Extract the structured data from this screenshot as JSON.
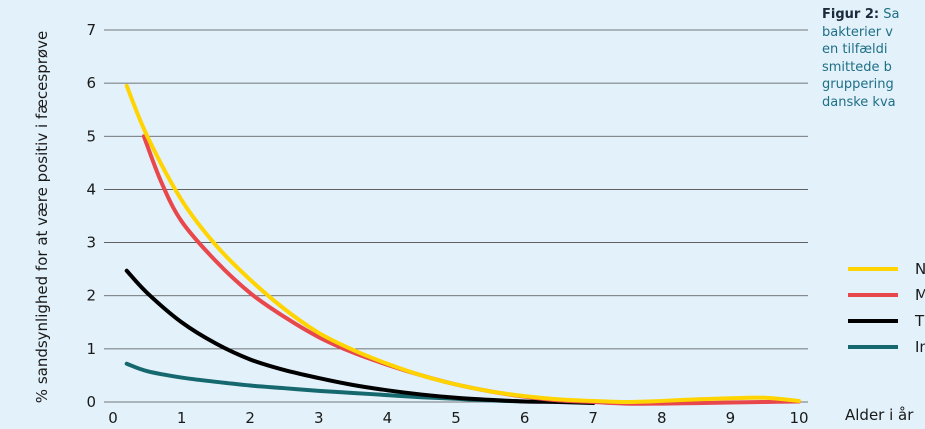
{
  "caption": {
    "lead": "Figur 2:",
    "lines": [
      "Sa",
      "bakterier v",
      "en tilfældi",
      "smittede b",
      "gruppering",
      "danske kva"
    ]
  },
  "chart_data": {
    "type": "line",
    "ylabel": "% sandsynlighed for at være positiv i fæcesprøve",
    "xlabel": "Alder i år",
    "xlim": [
      0,
      10
    ],
    "ylim": [
      0,
      7
    ],
    "xticks": [
      0,
      1,
      2,
      3,
      4,
      5,
      6,
      7,
      8,
      9,
      10
    ],
    "yticks": [
      0,
      1,
      2,
      3,
      4,
      5,
      6,
      7
    ],
    "grid": "horizontal",
    "legend_position": "right",
    "series": [
      {
        "name": "N",
        "color": "#ffd400",
        "x": [
          0.2,
          0.5,
          1,
          1.5,
          2,
          2.5,
          3,
          3.5,
          4,
          4.5,
          5,
          5.5,
          6,
          6.5,
          7,
          7.5,
          8,
          8.5,
          9,
          9.5,
          10
        ],
        "y": [
          5.95,
          5.0,
          3.8,
          2.95,
          2.3,
          1.75,
          1.3,
          0.98,
          0.72,
          0.5,
          0.33,
          0.2,
          0.11,
          0.05,
          0.02,
          0.0,
          0.02,
          0.05,
          0.07,
          0.08,
          0.02
        ]
      },
      {
        "name": "M",
        "color": "#e8474c",
        "x": [
          0.45,
          0.7,
          1,
          1.5,
          2,
          2.5,
          3,
          3.5,
          4,
          4.5,
          5,
          5.5,
          6,
          6.5,
          7,
          7.5,
          8,
          8.5,
          9,
          9.5,
          10
        ],
        "y": [
          5.0,
          4.15,
          3.4,
          2.65,
          2.05,
          1.6,
          1.22,
          0.93,
          0.7,
          0.5,
          0.33,
          0.2,
          0.1,
          0.03,
          0.0,
          -0.03,
          -0.03,
          -0.02,
          -0.01,
          0.0,
          0.01
        ]
      },
      {
        "name": "T",
        "color": "#000000",
        "x": [
          0.2,
          0.5,
          1,
          1.5,
          2,
          2.5,
          3,
          3.5,
          4,
          4.5,
          5,
          5.5,
          6,
          6.5,
          7
        ],
        "y": [
          2.47,
          2.05,
          1.5,
          1.1,
          0.8,
          0.6,
          0.45,
          0.32,
          0.22,
          0.14,
          0.08,
          0.04,
          0.01,
          0.0,
          -0.02
        ]
      },
      {
        "name": "In",
        "color": "#16686f",
        "x": [
          0.2,
          0.5,
          1,
          1.5,
          2,
          2.5,
          3,
          3.5,
          4,
          4.5,
          5,
          5.5,
          6
        ],
        "y": [
          0.72,
          0.58,
          0.46,
          0.38,
          0.31,
          0.26,
          0.21,
          0.17,
          0.13,
          0.09,
          0.06,
          0.03,
          0.01
        ]
      }
    ]
  }
}
